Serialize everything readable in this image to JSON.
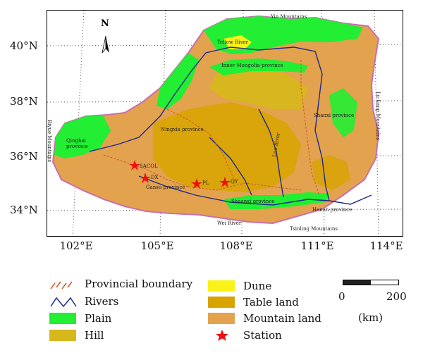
{
  "map": {
    "latitudes": [
      "40°N",
      "38°N",
      "36°N",
      "34°N"
    ],
    "longitudes": [
      "102°E",
      "105°E",
      "108°E",
      "111°E",
      "114°E"
    ],
    "north_arrow": "N",
    "place_labels": {
      "yin_mountains": "Yin Mountains",
      "yellow_river": "Yellow River",
      "inner_mongolia": "Inner Mongolia province",
      "shanxi": "Shanxi province",
      "luliang": "Lu-liang Mountains",
      "riyue": "Riyue Mountains",
      "qinghai": "Qinghai province",
      "ningxia": "Ningxia province",
      "gansu": "Gansu province",
      "luo_river": "Luo River",
      "shaanxi": "Shaanxi province",
      "henan": "Henan province",
      "wei_river": "Wei River",
      "tsinling": "Tsinling Mountains"
    },
    "stations": [
      "SACOL",
      "DX",
      "PL",
      "QY"
    ]
  },
  "colors": {
    "plain": "#22ee33",
    "hill": "#d6b81c",
    "dune": "#fbf21a",
    "table_land": "#d8a400",
    "mountain_land": "#e3a24d",
    "station": "#ee1111",
    "river": "#1c2a8a",
    "boundary": "#d05a2a"
  },
  "legend": {
    "provincial_boundary": "Provincial boundary",
    "rivers": "Rivers",
    "plain": "Plain",
    "hill": "Hill",
    "dune": "Dune",
    "table_land": "Table land",
    "mountain_land": "Mountain land",
    "station": "Station"
  },
  "scale_bar": {
    "start": "0",
    "end": "200",
    "unit": "(km)"
  }
}
